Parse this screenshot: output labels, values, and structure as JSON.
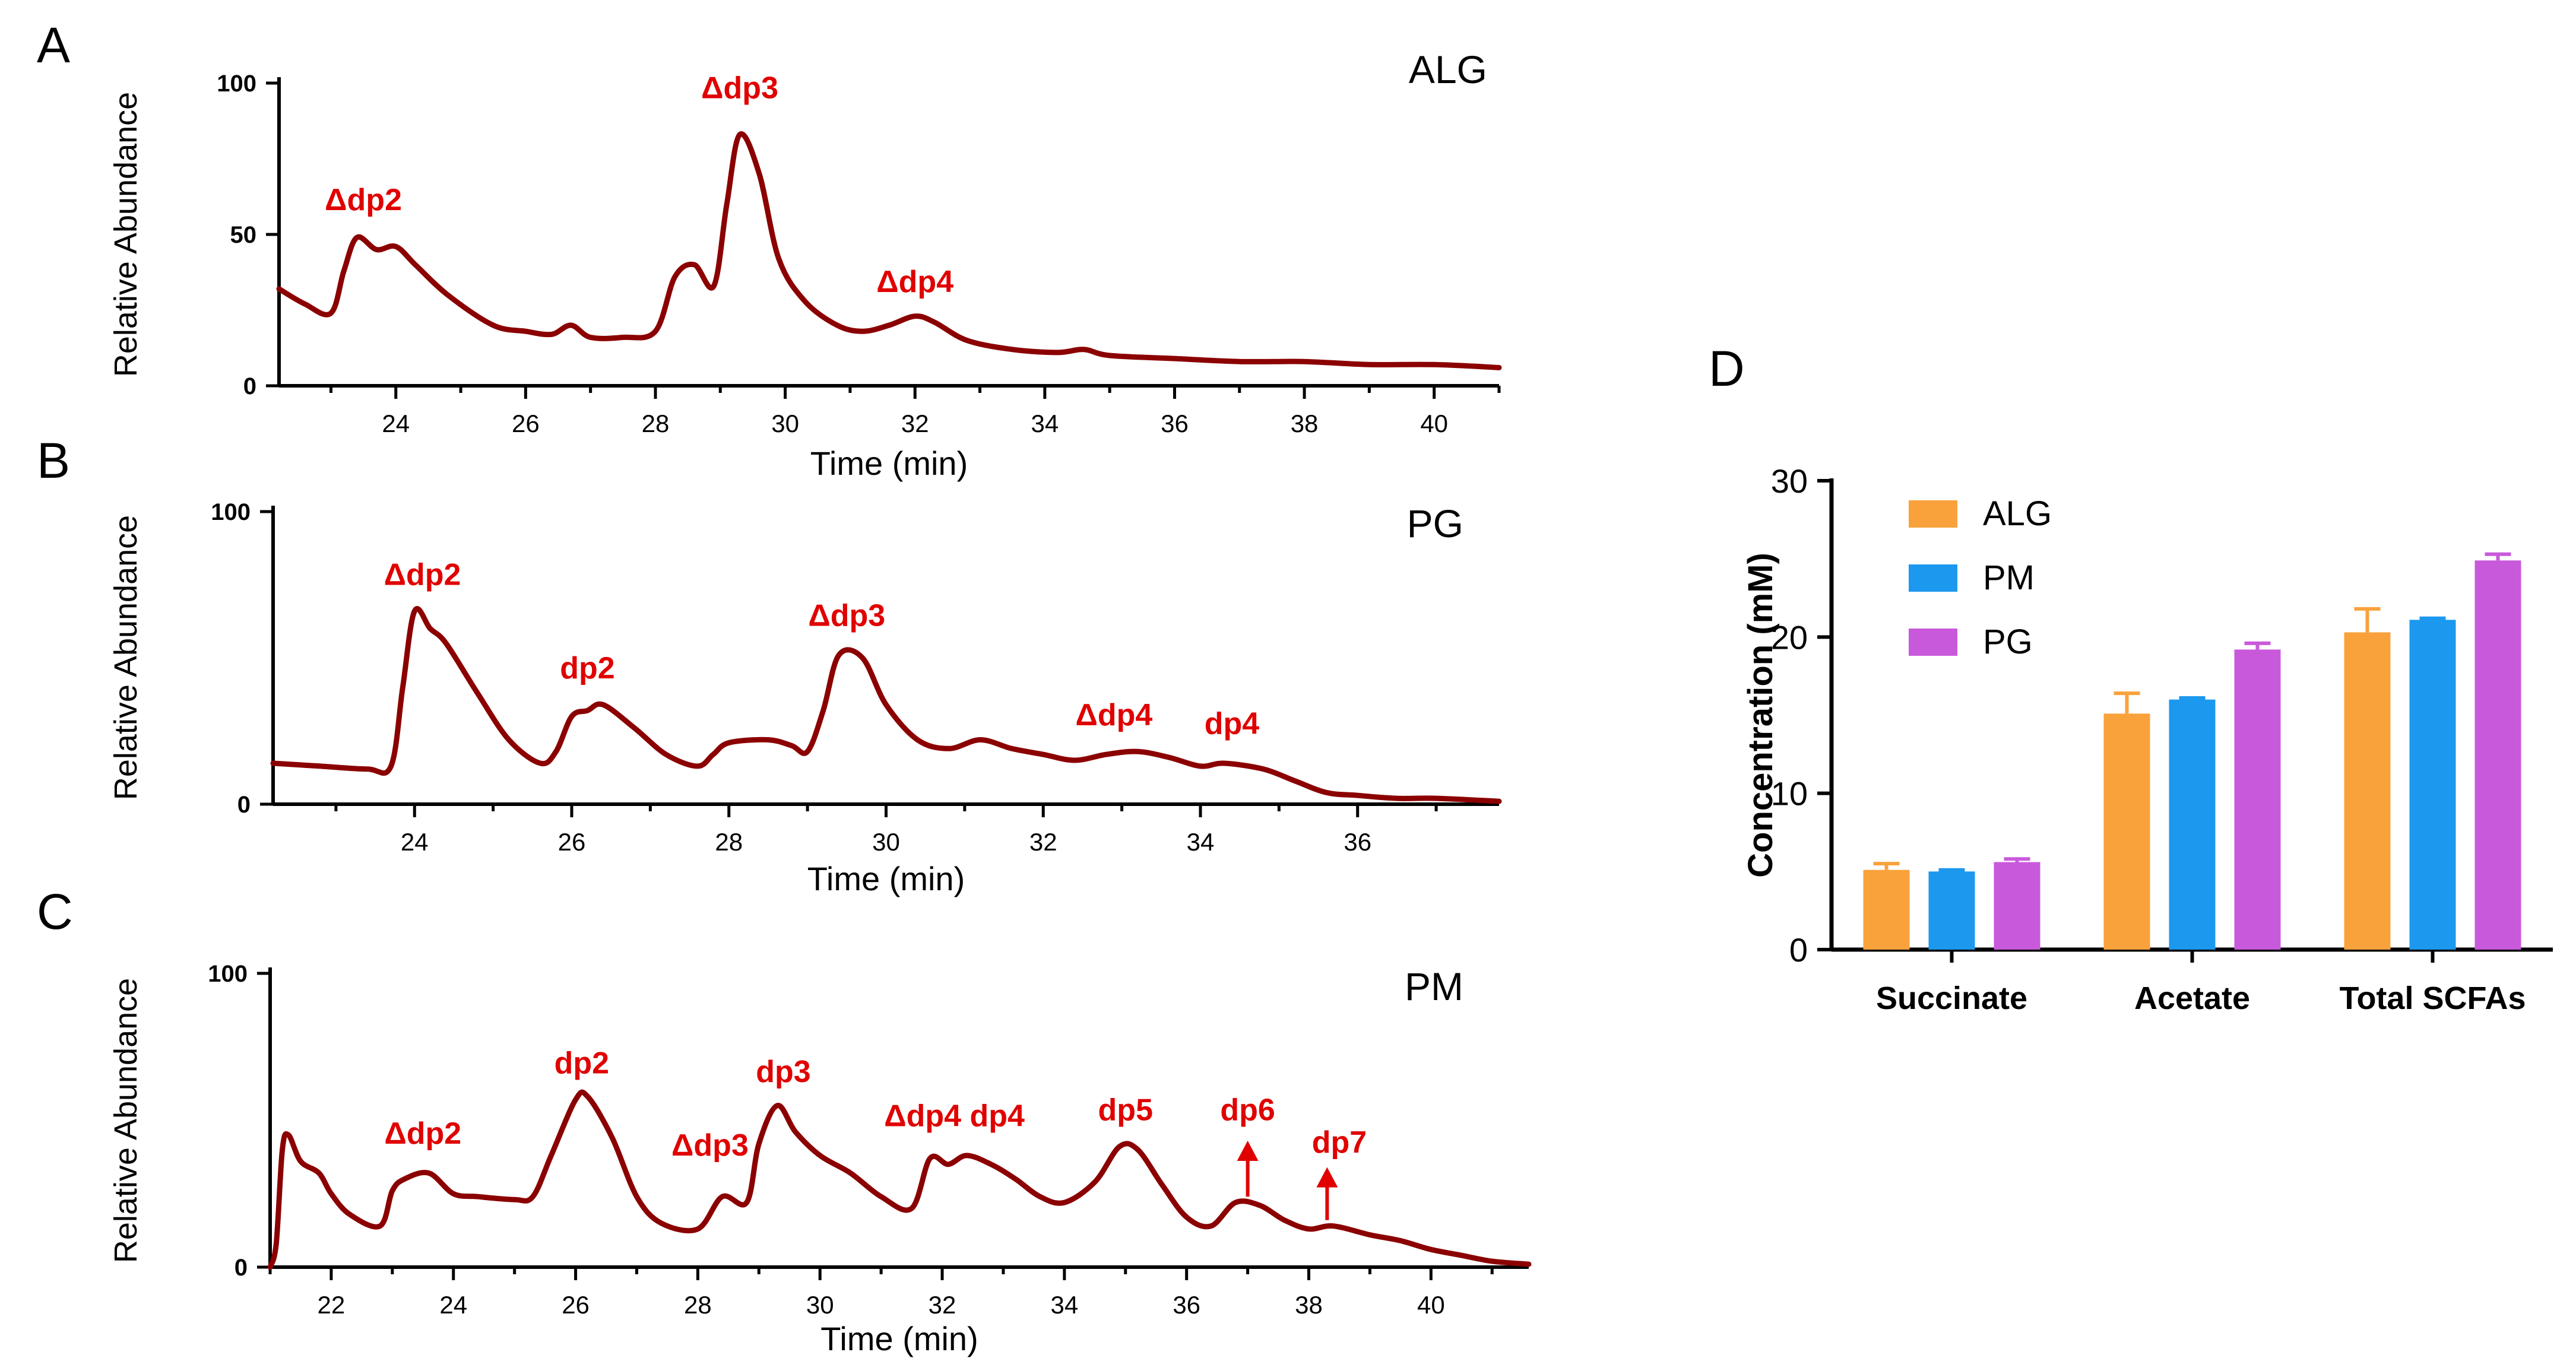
{
  "colors": {
    "trace": "#8b0000",
    "annot": "#e00000",
    "ALG": "#f9a23b",
    "PM": "#1c98ef",
    "PG": "#c959db",
    "axis": "#000000"
  },
  "chart_data": [
    {
      "id": "A",
      "type": "line",
      "panel_label": "A",
      "legend_text": "ALG",
      "xlabel": "Time (min)",
      "ylabel": "Relative Abundance",
      "xlim": [
        22.2,
        41
      ],
      "ylim": [
        0,
        100
      ],
      "xticks": [
        24,
        26,
        28,
        30,
        32,
        34,
        36,
        38,
        40
      ],
      "yticks": [
        0,
        50,
        100
      ],
      "points": [
        [
          22.2,
          32
        ],
        [
          22.6,
          27
        ],
        [
          23.0,
          24
        ],
        [
          23.2,
          38
        ],
        [
          23.4,
          49
        ],
        [
          23.7,
          45
        ],
        [
          24.0,
          46
        ],
        [
          24.3,
          40
        ],
        [
          24.8,
          30
        ],
        [
          25.5,
          20
        ],
        [
          26.0,
          18
        ],
        [
          26.4,
          17
        ],
        [
          26.7,
          20
        ],
        [
          27.0,
          16
        ],
        [
          27.5,
          16
        ],
        [
          28.0,
          18
        ],
        [
          28.3,
          36
        ],
        [
          28.6,
          40
        ],
        [
          28.9,
          33
        ],
        [
          29.1,
          60
        ],
        [
          29.3,
          83
        ],
        [
          29.6,
          70
        ],
        [
          29.9,
          42
        ],
        [
          30.3,
          28
        ],
        [
          30.8,
          20
        ],
        [
          31.2,
          18
        ],
        [
          31.6,
          20
        ],
        [
          32.0,
          23
        ],
        [
          32.3,
          21
        ],
        [
          32.8,
          15
        ],
        [
          33.5,
          12
        ],
        [
          34.2,
          11
        ],
        [
          34.6,
          12
        ],
        [
          35.0,
          10
        ],
        [
          36.0,
          9
        ],
        [
          37.0,
          8
        ],
        [
          38.0,
          8
        ],
        [
          39.0,
          7
        ],
        [
          40.0,
          7
        ],
        [
          41.0,
          6
        ]
      ],
      "annotations": [
        {
          "label": "Δdp2",
          "x": 23.5,
          "y": 58
        },
        {
          "label": "Δdp3",
          "x": 29.3,
          "y": 95
        },
        {
          "label": "Δdp4",
          "x": 32.0,
          "y": 31
        }
      ]
    },
    {
      "id": "B",
      "type": "line",
      "panel_label": "B",
      "legend_text": "PG",
      "xlabel": "Time (min)",
      "ylabel": "Relative Abundance",
      "xlim": [
        22.2,
        37.8
      ],
      "ylim": [
        0,
        100
      ],
      "xticks": [
        24,
        26,
        28,
        30,
        32,
        34,
        36
      ],
      "yticks": [
        0,
        100
      ],
      "points": [
        [
          22.2,
          14
        ],
        [
          22.8,
          13
        ],
        [
          23.4,
          12
        ],
        [
          23.7,
          13
        ],
        [
          23.85,
          40
        ],
        [
          24.0,
          66
        ],
        [
          24.2,
          60
        ],
        [
          24.4,
          55
        ],
        [
          24.8,
          38
        ],
        [
          25.2,
          22
        ],
        [
          25.6,
          14
        ],
        [
          25.8,
          18
        ],
        [
          26.0,
          30
        ],
        [
          26.2,
          32
        ],
        [
          26.4,
          34
        ],
        [
          26.8,
          26
        ],
        [
          27.2,
          17
        ],
        [
          27.6,
          13
        ],
        [
          27.8,
          17
        ],
        [
          28.0,
          21
        ],
        [
          28.5,
          22
        ],
        [
          28.8,
          20
        ],
        [
          29.0,
          18
        ],
        [
          29.2,
          32
        ],
        [
          29.4,
          51
        ],
        [
          29.7,
          50
        ],
        [
          30.0,
          34
        ],
        [
          30.4,
          22
        ],
        [
          30.8,
          19
        ],
        [
          31.2,
          22
        ],
        [
          31.6,
          19
        ],
        [
          32.0,
          17
        ],
        [
          32.4,
          15
        ],
        [
          32.8,
          17
        ],
        [
          33.2,
          18
        ],
        [
          33.6,
          16
        ],
        [
          34.0,
          13
        ],
        [
          34.3,
          14
        ],
        [
          34.8,
          12
        ],
        [
          35.2,
          8
        ],
        [
          35.6,
          4
        ],
        [
          36.0,
          3
        ],
        [
          36.5,
          2
        ],
        [
          37.0,
          2
        ],
        [
          37.8,
          1
        ]
      ],
      "annotations": [
        {
          "label": "Δdp2",
          "x": 24.1,
          "y": 75
        },
        {
          "label": "dp2",
          "x": 26.2,
          "y": 43
        },
        {
          "label": "Δdp3",
          "x": 29.5,
          "y": 61
        },
        {
          "label": "Δdp4",
          "x": 32.9,
          "y": 27
        },
        {
          "label": "dp4",
          "x": 34.4,
          "y": 24
        }
      ]
    },
    {
      "id": "C",
      "type": "line",
      "panel_label": "C",
      "legend_text": "PM",
      "xlabel": "Time (min)",
      "ylabel": "Relative Abundance",
      "xlim": [
        21,
        41.6
      ],
      "ylim": [
        0,
        100
      ],
      "xticks": [
        22,
        24,
        26,
        28,
        30,
        32,
        34,
        36,
        38,
        40
      ],
      "yticks": [
        0,
        100
      ],
      "points": [
        [
          21.0,
          0
        ],
        [
          21.1,
          8
        ],
        [
          21.2,
          40
        ],
        [
          21.3,
          45
        ],
        [
          21.5,
          36
        ],
        [
          21.8,
          32
        ],
        [
          22.0,
          25
        ],
        [
          22.3,
          18
        ],
        [
          22.8,
          14
        ],
        [
          23.0,
          26
        ],
        [
          23.2,
          30
        ],
        [
          23.6,
          32
        ],
        [
          24.0,
          25
        ],
        [
          24.4,
          24
        ],
        [
          25.0,
          23
        ],
        [
          25.3,
          24
        ],
        [
          25.6,
          38
        ],
        [
          26.0,
          57
        ],
        [
          26.2,
          58
        ],
        [
          26.6,
          44
        ],
        [
          27.0,
          24
        ],
        [
          27.4,
          15
        ],
        [
          28.0,
          13
        ],
        [
          28.4,
          24
        ],
        [
          28.8,
          22
        ],
        [
          29.0,
          42
        ],
        [
          29.3,
          55
        ],
        [
          29.6,
          46
        ],
        [
          30.0,
          38
        ],
        [
          30.5,
          32
        ],
        [
          31.0,
          24
        ],
        [
          31.5,
          20
        ],
        [
          31.8,
          37
        ],
        [
          32.1,
          35
        ],
        [
          32.4,
          38
        ],
        [
          32.8,
          35
        ],
        [
          33.2,
          30
        ],
        [
          33.6,
          24
        ],
        [
          34.0,
          22
        ],
        [
          34.5,
          29
        ],
        [
          34.9,
          41
        ],
        [
          35.2,
          40
        ],
        [
          35.6,
          28
        ],
        [
          36.0,
          17
        ],
        [
          36.4,
          14
        ],
        [
          36.8,
          22
        ],
        [
          37.2,
          21
        ],
        [
          37.6,
          16
        ],
        [
          38.0,
          13
        ],
        [
          38.4,
          14
        ],
        [
          39.0,
          11
        ],
        [
          39.5,
          9
        ],
        [
          40.0,
          6
        ],
        [
          40.5,
          4
        ],
        [
          41.0,
          2
        ],
        [
          41.6,
          1
        ]
      ],
      "annotations": [
        {
          "label": "Δdp2",
          "x": 23.5,
          "y": 42
        },
        {
          "label": "dp2",
          "x": 26.1,
          "y": 66
        },
        {
          "label": "Δdp3",
          "x": 28.2,
          "y": 38
        },
        {
          "label": "dp3",
          "x": 29.4,
          "y": 63
        },
        {
          "label": "Δdp4 dp4",
          "x": 32.2,
          "y": 48
        },
        {
          "label": "dp5",
          "x": 35.0,
          "y": 50
        },
        {
          "label": "dp6",
          "x": 37.0,
          "y": 50
        },
        {
          "label": "dp7",
          "x": 38.5,
          "y": 39
        }
      ],
      "arrows": [
        {
          "x": 37.0,
          "y_from": 24,
          "y_to": 41
        },
        {
          "x": 38.3,
          "y_from": 16,
          "y_to": 32
        }
      ]
    },
    {
      "id": "D",
      "type": "bar",
      "panel_label": "D",
      "title": "",
      "xlabel": "",
      "ylabel": "Concentration (mM)",
      "ylim": [
        0,
        30
      ],
      "yticks": [
        0,
        10,
        20,
        30
      ],
      "categories": [
        "Succinate",
        "Acetate",
        "Total SCFAs"
      ],
      "series": [
        {
          "name": "ALG",
          "values": [
            5.1,
            15.1,
            20.3
          ],
          "errors": [
            0.4,
            1.3,
            1.5
          ]
        },
        {
          "name": "PM",
          "values": [
            5.0,
            16.0,
            21.1
          ],
          "errors": [
            0.1,
            0.1,
            0.1
          ]
        },
        {
          "name": "PG",
          "values": [
            5.6,
            19.2,
            24.9
          ],
          "errors": [
            0.2,
            0.4,
            0.4
          ]
        }
      ],
      "legend_position": "top-left"
    }
  ]
}
